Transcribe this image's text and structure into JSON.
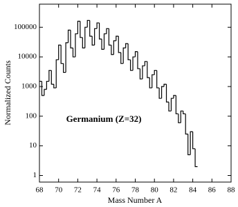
{
  "chart_data": {
    "type": "histogram",
    "annotation": "Germanium (Z=32)",
    "xlabel": "Mass Number A",
    "ylabel": "Normalized Counts",
    "bins": [
      68,
      68.25,
      68.5,
      68.75,
      69,
      69.25,
      69.5,
      69.75,
      70,
      70.25,
      70.5,
      70.75,
      71,
      71.25,
      71.5,
      71.75,
      72,
      72.25,
      72.5,
      72.75,
      73,
      73.25,
      73.5,
      73.75,
      74,
      74.25,
      74.5,
      74.75,
      75,
      75.25,
      75.5,
      75.75,
      76,
      76.25,
      76.5,
      76.75,
      77,
      77.25,
      77.5,
      77.75,
      78,
      78.25,
      78.5,
      78.75,
      79,
      79.25,
      79.5,
      79.75,
      80,
      80.25,
      80.5,
      80.75,
      81,
      81.25,
      81.5,
      81.75,
      82,
      82.25,
      82.5,
      82.75,
      83,
      83.25,
      83.5,
      83.75,
      84,
      84.25,
      84.5
    ],
    "values": [
      1500,
      500,
      800,
      1500,
      3500,
      1200,
      900,
      8000,
      25000,
      6000,
      3000,
      30000,
      80000,
      20000,
      10000,
      60000,
      160000,
      45000,
      20000,
      100000,
      170000,
      50000,
      25000,
      90000,
      140000,
      40000,
      18000,
      60000,
      90000,
      25000,
      12000,
      35000,
      50000,
      14000,
      6000,
      20000,
      28000,
      8000,
      3500,
      10000,
      15000,
      4000,
      1800,
      5000,
      7000,
      2000,
      900,
      2500,
      3500,
      900,
      400,
      1000,
      1200,
      300,
      150,
      400,
      500,
      120,
      60,
      150,
      120,
      25,
      5,
      30,
      8,
      2
    ],
    "color": "#000000",
    "xlim": [
      68,
      88
    ],
    "xticks": [
      68,
      70,
      72,
      74,
      76,
      78,
      80,
      82,
      84,
      86,
      88
    ],
    "ylim": [
      0.6,
      600000
    ],
    "yticks": [
      1,
      10,
      100,
      1000,
      10000,
      100000
    ],
    "log_y": true
  }
}
